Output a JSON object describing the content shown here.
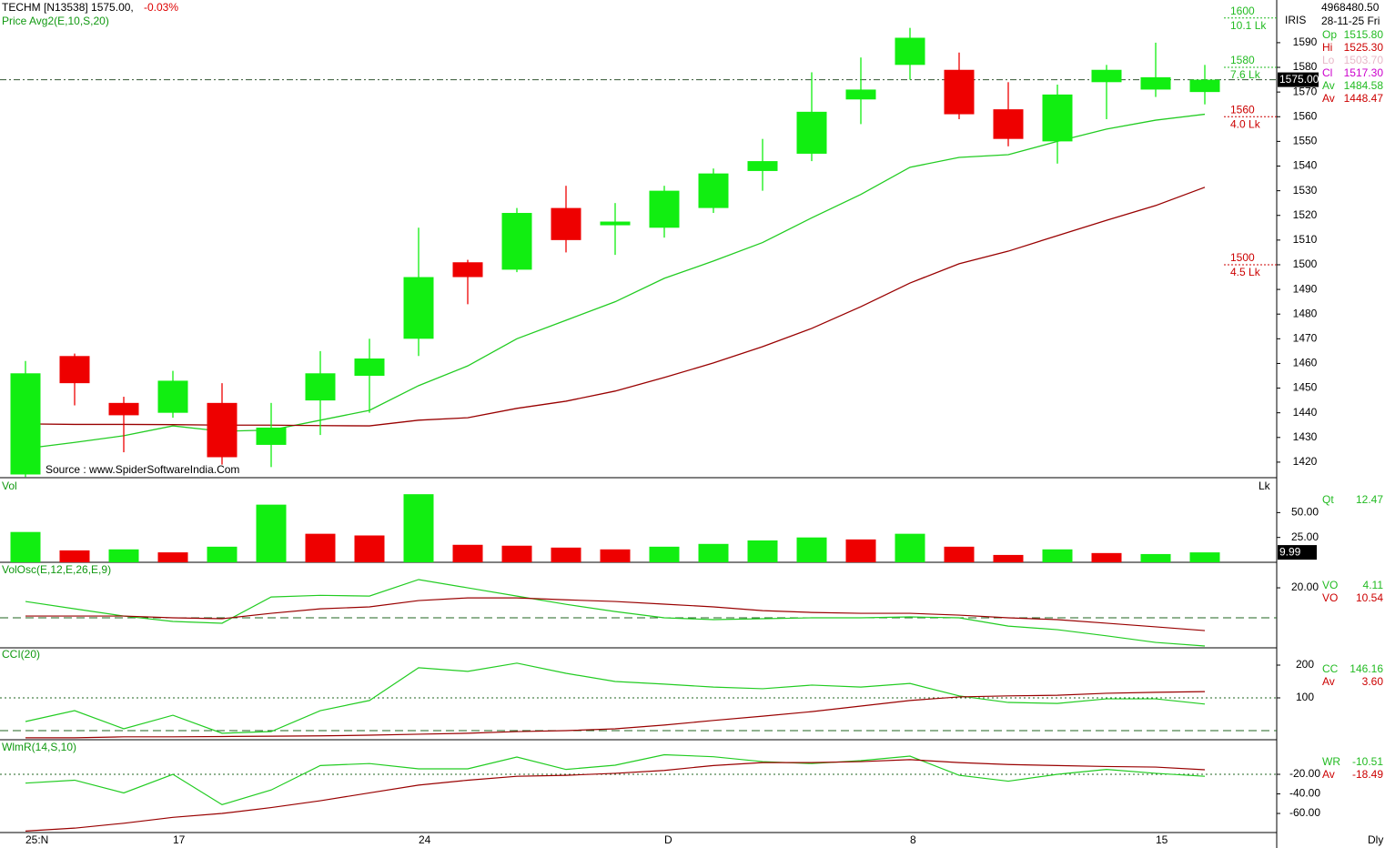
{
  "chart_data": [
    {
      "type": "candlestick",
      "title": "TECHM [N13538] 1575.00,",
      "change": "-0.03%",
      "subtitle": "Price  Avg2(E,10,S,20)",
      "source": "Source : www.SpiderSoftwareIndia.Com",
      "timeframe": "Dly",
      "feed": "IRIS",
      "info": [
        "4968480.50",
        "28-11-25 Fri"
      ],
      "categories": [
        "25:N",
        null,
        null,
        "17",
        null,
        null,
        null,
        null,
        "24",
        null,
        null,
        null,
        null,
        "D",
        null,
        null,
        null,
        null,
        "8",
        null,
        null,
        null,
        null,
        "15",
        null
      ],
      "open": [
        1415,
        1463,
        1444,
        1440,
        1444,
        1427,
        1445,
        1455,
        1470,
        1501,
        1498,
        1523,
        1516,
        1515,
        1523,
        1538,
        1545,
        1567,
        1581,
        1579,
        1563,
        1550,
        1574,
        1571,
        1570
      ],
      "high": [
        1461,
        1464,
        1446.5,
        1457,
        1452,
        1444,
        1465,
        1470,
        1515,
        1502,
        1523,
        1532,
        1525,
        1532,
        1539,
        1551,
        1578,
        1584,
        1596,
        1586,
        1574,
        1573,
        1581,
        1590,
        1581
      ],
      "low": [
        1414,
        1443,
        1424,
        1438,
        1419,
        1418,
        1431,
        1440,
        1463,
        1484,
        1497,
        1505,
        1504,
        1511,
        1521,
        1530,
        1542,
        1557,
        1575,
        1559,
        1548,
        1541,
        1559,
        1568,
        1565
      ],
      "close": [
        1456,
        1452,
        1439,
        1453,
        1422,
        1434,
        1456,
        1462,
        1495,
        1495,
        1521,
        1510,
        1517.5,
        1530,
        1537,
        1542,
        1562,
        1571,
        1592,
        1561,
        1551,
        1569,
        1579,
        1576,
        1575
      ],
      "up_color": "#11ee11",
      "down_color": "#ee0000",
      "overlays": [
        {
          "color": "#22cc22",
          "values": [
            1425.5,
            1428,
            1430.7,
            1434.7,
            1432.5,
            1433,
            1437,
            1441,
            1451,
            1459,
            1470,
            1477.5,
            1485,
            1494.5,
            1501.5,
            1509,
            1519,
            1528.5,
            1539.5,
            1543.5,
            1544.6,
            1550,
            1555,
            1558.6,
            1561
          ]
        },
        {
          "color": "#990000",
          "values": [
            1435.5,
            1435.3,
            1435.3,
            1435.2,
            1435,
            1435,
            1434.8,
            1434.7,
            1437,
            1438,
            1441.8,
            1444.7,
            1448.8,
            1454.3,
            1460.2,
            1466.8,
            1474.2,
            1483,
            1492.6,
            1500.4,
            1505.5,
            1511.8,
            1518,
            1524,
            1531.4
          ]
        }
      ],
      "last_price": {
        "value": 1575,
        "label": "1575.00"
      },
      "volume_at_price": [
        {
          "price": 1600,
          "volume": "10.1 Lk",
          "color": "#22bb22"
        },
        {
          "price": 1580,
          "volume": "7.6 Lk",
          "color": "#22bb22"
        },
        {
          "price": 1560,
          "volume": "4.0 Lk",
          "color": "#cc0000"
        },
        {
          "price": 1500,
          "volume": "4.5 Lk",
          "color": "#cc0000"
        }
      ],
      "ylim": [
        1413.7,
        1607.3
      ],
      "yticks": [
        1420,
        1430,
        1440,
        1450,
        1460,
        1470,
        1480,
        1490,
        1500,
        1510,
        1520,
        1530,
        1540,
        1550,
        1560,
        1570,
        1580,
        1590
      ],
      "readouts": [
        {
          "label": "Op",
          "value": "1515.80",
          "color": "#22bb22"
        },
        {
          "label": "Hi",
          "value": "1525.30",
          "color": "#cc0000"
        },
        {
          "label": "Lo",
          "value": "1503.70",
          "color": "#e8b8c8"
        },
        {
          "label": "Cl",
          "value": "1517.30",
          "color": "#cc00cc"
        },
        {
          "label": "Av",
          "value": "1484.58",
          "color": "#22bb22"
        },
        {
          "label": "Av",
          "value": "1448.47",
          "color": "#cc0000"
        }
      ]
    },
    {
      "type": "bar",
      "title": "Vol",
      "unit": "Lk",
      "values": [
        30.5,
        12,
        13,
        10,
        15.7,
        58,
        28.7,
        27,
        68.5,
        17.6,
        16.7,
        14.8,
        13,
        15.7,
        18.5,
        22,
        25,
        23,
        28.7,
        15.7,
        7.4,
        13,
        9.3,
        8.3,
        9.99
      ],
      "colors": [
        "#11ee11",
        "#ee0000",
        "#11ee11",
        "#ee0000",
        "#11ee11",
        "#11ee11",
        "#ee0000",
        "#ee0000",
        "#11ee11",
        "#ee0000",
        "#ee0000",
        "#ee0000",
        "#ee0000",
        "#11ee11",
        "#11ee11",
        "#11ee11",
        "#11ee11",
        "#ee0000",
        "#11ee11",
        "#ee0000",
        "#ee0000",
        "#11ee11",
        "#ee0000",
        "#11ee11",
        "#11ee11"
      ],
      "ylim": [
        0,
        83.3
      ],
      "yticks": [
        {
          "value": 25,
          "label": "25.00"
        },
        {
          "value": 50,
          "label": "50.00"
        }
      ],
      "readouts": [
        {
          "label": "Qt",
          "value": "12.47",
          "color": "#22bb22"
        }
      ]
    },
    {
      "type": "line",
      "title": "VolOsc(E,12,E,26,E,9)",
      "series": [
        {
          "color": "#22cc22",
          "values": [
            10.9,
            6,
            1.2,
            -2.4,
            -3.6,
            13.9,
            15,
            14.5,
            25.5,
            20,
            14.5,
            9,
            4.2,
            0,
            -1.2,
            -0.6,
            0,
            0,
            0.6,
            0,
            -5.5,
            -7.9,
            -12,
            -16.4,
            -18.8
          ]
        },
        {
          "color": "#990000",
          "values": [
            1.2,
            1.2,
            1.2,
            0,
            -0.6,
            3,
            6,
            7.3,
            11.5,
            13.3,
            13.3,
            12,
            10.9,
            9.1,
            7.3,
            4.8,
            3.6,
            3,
            3,
            1.8,
            0,
            -1.2,
            -3.6,
            -6,
            -8.5
          ]
        }
      ],
      "hlines": [
        {
          "value": 0,
          "style": "dashed"
        }
      ],
      "ylim": [
        -20,
        35.8
      ],
      "yticks": [
        {
          "value": 20,
          "label": "20.00"
        }
      ],
      "readouts": [
        {
          "label": "VO",
          "value": "4.11",
          "color": "#22bb22"
        },
        {
          "label": "VO",
          "value": "10.54",
          "color": "#cc0000"
        }
      ]
    },
    {
      "type": "line",
      "title": "CCI(20)",
      "series": [
        {
          "color": "#22cc22",
          "values": [
            27.8,
            61,
            5.6,
            47,
            -8,
            -2.8,
            61,
            92,
            192,
            181,
            206,
            175,
            150,
            142,
            133,
            128,
            139,
            133,
            144,
            106,
            86,
            83,
            97,
            97,
            81
          ]
        },
        {
          "color": "#990000",
          "values": [
            -22,
            -22,
            -19,
            -19,
            -18,
            -17,
            -16,
            -14,
            -11,
            -8,
            -3,
            0,
            5.6,
            17,
            31,
            44,
            58,
            75,
            92,
            103,
            106,
            108,
            114,
            117,
            119
          ]
        }
      ],
      "hlines": [
        {
          "value": 100,
          "style": "dotted"
        },
        {
          "value": 0,
          "style": "dashed"
        }
      ],
      "ylim": [
        -27.8,
        250
      ],
      "yticks": [
        100,
        200
      ],
      "readouts": [
        {
          "label": "CC",
          "value": "146.16",
          "color": "#22bb22"
        },
        {
          "label": "Av",
          "value": "3.60",
          "color": "#cc0000"
        }
      ]
    },
    {
      "type": "line",
      "title": "WlmR(14,S,10)",
      "series": [
        {
          "color": "#22cc22",
          "values": [
            -29,
            -26,
            -39,
            -20,
            -51,
            -36,
            -11,
            -9,
            -14.4,
            -14.4,
            -2.3,
            -15,
            -10.7,
            0,
            -2,
            -7,
            -9,
            -6,
            -1.4,
            -21,
            -27,
            -20,
            -15,
            -19,
            -22
          ]
        },
        {
          "color": "#990000",
          "values": [
            -78,
            -75,
            -70,
            -64,
            -60,
            -54,
            -47,
            -39,
            -31,
            -26,
            -22,
            -21,
            -19,
            -16,
            -11,
            -8,
            -8,
            -7,
            -5,
            -8,
            -10,
            -11,
            -12,
            -12.6,
            -15.3
          ]
        }
      ],
      "hlines": [
        {
          "value": -20,
          "style": "dotted"
        }
      ],
      "ylim": [
        -79.5,
        13.5
      ],
      "yticks": [
        {
          "value": -20,
          "label": "-20.00"
        },
        {
          "value": -40,
          "label": "-40.00"
        },
        {
          "value": -60,
          "label": "-60.00"
        }
      ],
      "readouts": [
        {
          "label": "WR",
          "value": "-10.51",
          "color": "#22bb22"
        },
        {
          "label": "Av",
          "value": "-18.49",
          "color": "#cc0000"
        }
      ]
    }
  ]
}
